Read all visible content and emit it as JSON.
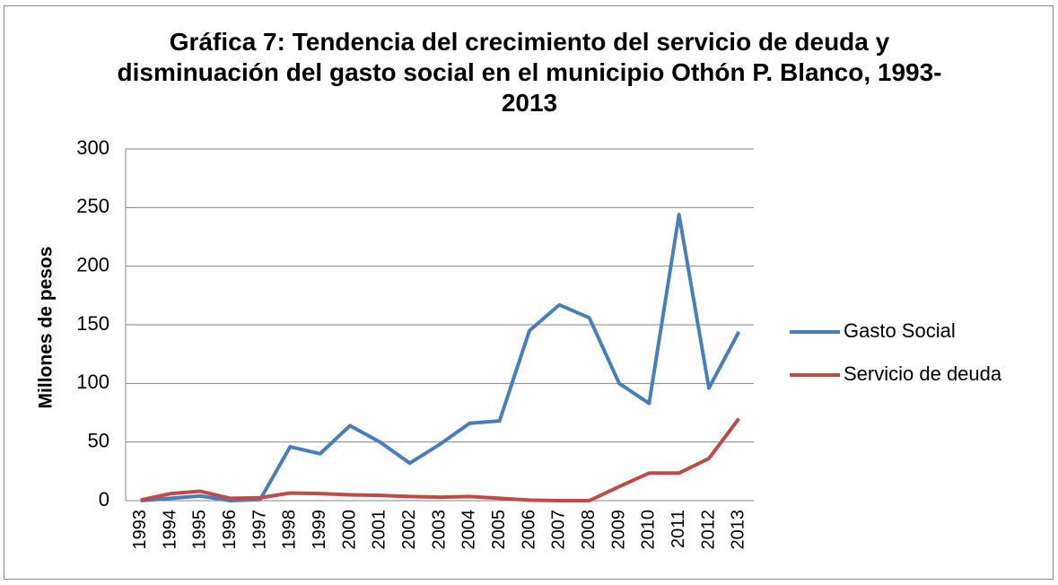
{
  "chart_data": {
    "type": "line",
    "title": "Gráfica 7: Tendencia del crecimiento del servicio de deuda y disminuación del gasto social en el municipio Othón P. Blanco, 1993-2013",
    "y_label": "Millones de pesos",
    "categories": [
      "1993",
      "1994",
      "1995",
      "1996",
      "1997",
      "1998",
      "1999",
      "2000",
      "2001",
      "2002",
      "2003",
      "2004",
      "2005",
      "2006",
      "2007",
      "2008",
      "2009",
      "2010",
      "2011",
      "2012",
      "2013"
    ],
    "series": [
      {
        "name": "Gasto Social",
        "color": "#4a7ebb",
        "values": [
          0,
          2,
          4,
          0,
          1,
          46,
          40,
          64,
          50,
          32,
          48,
          66,
          68,
          145,
          167,
          156,
          100,
          83,
          244,
          96,
          144
        ]
      },
      {
        "name": "Servicio de deuda",
        "color": "#be4b48",
        "values": [
          0.5,
          6,
          8,
          2,
          2.5,
          6.5,
          6,
          5,
          4.5,
          3.5,
          3,
          3.5,
          2,
          0.5,
          0,
          0,
          12,
          23.5,
          23.5,
          36,
          70
        ]
      }
    ],
    "ylim": [
      0,
      300
    ],
    "yticks": [
      0,
      50,
      100,
      150,
      200,
      250,
      300
    ],
    "grid": true,
    "legend": "right"
  }
}
